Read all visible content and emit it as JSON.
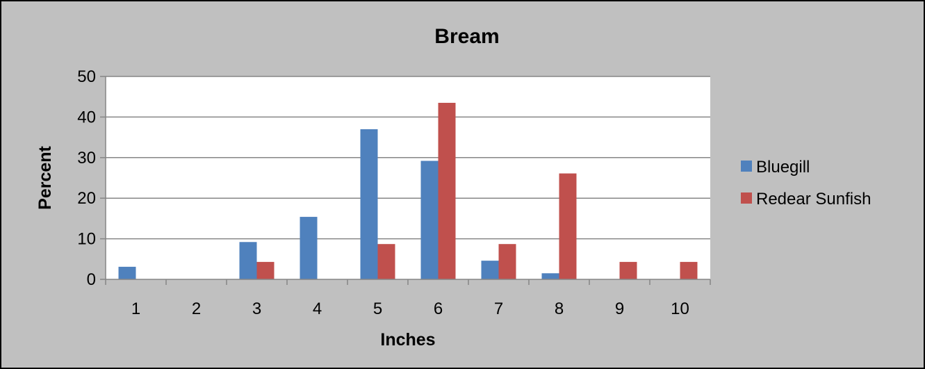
{
  "chart_data": {
    "type": "bar",
    "title": "Bream",
    "xlabel": "Inches",
    "ylabel": "Percent",
    "categories": [
      "1",
      "2",
      "3",
      "4",
      "5",
      "6",
      "7",
      "8",
      "9",
      "10"
    ],
    "ylim": [
      0,
      50
    ],
    "yticks": [
      "0",
      "10",
      "20",
      "30",
      "40",
      "50"
    ],
    "grid": true,
    "legend_position": "right",
    "series": [
      {
        "name": "Bluegill",
        "color": "#4f81bd",
        "values": [
          3.1,
          0,
          9.2,
          15.4,
          37.0,
          29.2,
          4.6,
          1.5,
          0,
          0
        ]
      },
      {
        "name": "Redear Sunfish",
        "color": "#c0504d",
        "values": [
          0,
          0,
          4.3,
          0,
          8.7,
          43.5,
          8.7,
          26.1,
          4.3,
          4.3
        ]
      }
    ]
  }
}
